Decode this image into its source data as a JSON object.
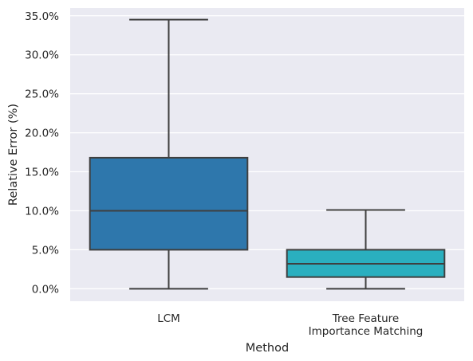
{
  "chart_data": {
    "type": "box",
    "title": "",
    "xlabel": "Method",
    "ylabel": "Relative Error (%)",
    "ylim": [
      -1.6,
      36.0
    ],
    "yticks": [
      0,
      5,
      10,
      15,
      20,
      25,
      30,
      35
    ],
    "ytick_labels": [
      "0.0%",
      "5.0%",
      "10.0%",
      "15.0%",
      "20.0%",
      "25.0%",
      "30.0%",
      "35.0%"
    ],
    "grid": true,
    "categories": [
      {
        "label_lines": [
          "LCM"
        ],
        "color": "#2e77ac",
        "whisker_low": 0.0,
        "q1": 5.0,
        "median": 10.0,
        "q3": 16.8,
        "whisker_high": 34.5
      },
      {
        "label_lines": [
          "Tree Feature",
          "Importance Matching"
        ],
        "color": "#2aafbf",
        "whisker_low": 0.0,
        "q1": 1.5,
        "median": 3.2,
        "q3": 5.0,
        "whisker_high": 10.1
      }
    ],
    "colors": {
      "plot_background": "#eaeaf2",
      "grid": "#ffffff",
      "box_edge": "#3f3f3f"
    }
  }
}
